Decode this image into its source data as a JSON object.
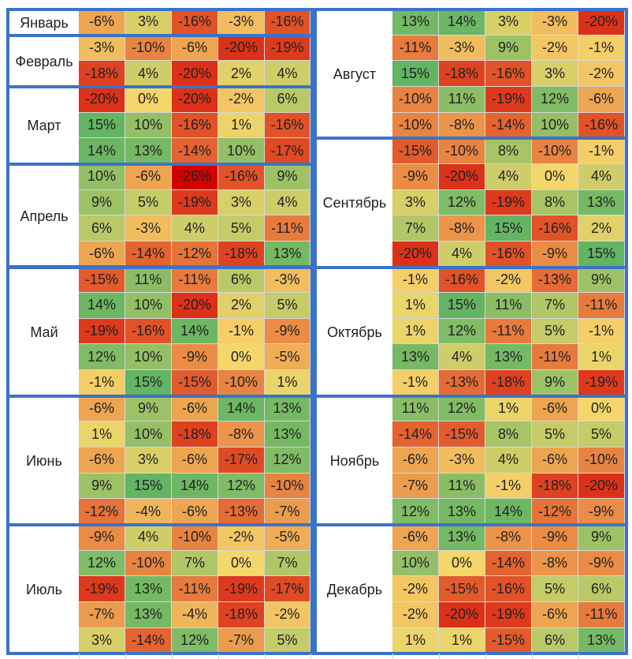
{
  "colors": {
    "frame": "#3b73c8",
    "scale_min": "#d40000",
    "scale_mid": "#f5d66b",
    "scale_max": "#63b463"
  },
  "left_months": [
    {
      "name": "Январь",
      "rows": [
        [
          "-6%",
          "3%",
          "-16%",
          "-3%",
          "-16%"
        ]
      ]
    },
    {
      "name": "Февраль",
      "rows": [
        [
          "-3%",
          "-10%",
          "-6%",
          "-20%",
          "-19%"
        ],
        [
          "-18%",
          "4%",
          "-20%",
          "2%",
          "4%"
        ]
      ]
    },
    {
      "name": "Март",
      "rows": [
        [
          "-20%",
          "0%",
          "-20%",
          "-2%",
          "6%"
        ],
        [
          "15%",
          "10%",
          "-16%",
          "1%",
          "-16%"
        ],
        [
          "14%",
          "13%",
          "-14%",
          "10%",
          "-17%"
        ]
      ]
    },
    {
      "name": "Апрель",
      "rows": [
        [
          "10%",
          "-6%",
          "-26%",
          "-16%",
          "9%"
        ],
        [
          "9%",
          "5%",
          "-19%",
          "3%",
          "4%"
        ],
        [
          "6%",
          "-3%",
          "4%",
          "5%",
          "-11%"
        ],
        [
          "-6%",
          "-14%",
          "-12%",
          "-18%",
          "13%"
        ]
      ]
    },
    {
      "name": "Май",
      "rows": [
        [
          "-15%",
          "11%",
          "-11%",
          "6%",
          "-3%"
        ],
        [
          "14%",
          "10%",
          "-20%",
          "2%",
          "5%"
        ],
        [
          "-19%",
          "-16%",
          "14%",
          "-1%",
          "-9%"
        ],
        [
          "12%",
          "10%",
          "-9%",
          "0%",
          "-5%"
        ],
        [
          "-1%",
          "15%",
          "-15%",
          "-10%",
          "1%"
        ]
      ]
    },
    {
      "name": "Июнь",
      "rows": [
        [
          "-6%",
          "9%",
          "-6%",
          "14%",
          "13%"
        ],
        [
          "1%",
          "10%",
          "-18%",
          "-8%",
          "13%"
        ],
        [
          "-6%",
          "3%",
          "-6%",
          "-17%",
          "12%"
        ],
        [
          "9%",
          "15%",
          "14%",
          "12%",
          "-10%"
        ],
        [
          "-12%",
          "-4%",
          "-6%",
          "-13%",
          "-7%"
        ]
      ]
    },
    {
      "name": "Июль",
      "rows": [
        [
          "-9%",
          "4%",
          "-10%",
          "-2%",
          "-5%"
        ],
        [
          "12%",
          "-10%",
          "7%",
          "0%",
          "7%"
        ],
        [
          "-19%",
          "13%",
          "-11%",
          "-19%",
          "-17%"
        ],
        [
          "-7%",
          "13%",
          "-4%",
          "-18%",
          "-2%"
        ],
        [
          "3%",
          "-14%",
          "12%",
          "-7%",
          "5%"
        ]
      ]
    }
  ],
  "right_months": [
    {
      "name": "Август",
      "rows": [
        [
          "13%",
          "14%",
          "3%",
          "-3%",
          "-20%"
        ],
        [
          "-11%",
          "-3%",
          "9%",
          "-2%",
          "-1%"
        ],
        [
          "15%",
          "-18%",
          "-16%",
          "3%",
          "-2%"
        ],
        [
          "-10%",
          "11%",
          "-19%",
          "12%",
          "-6%"
        ],
        [
          "-10%",
          "-8%",
          "-14%",
          "10%",
          "-16%"
        ]
      ]
    },
    {
      "name": "Сентябрь",
      "rows": [
        [
          "-15%",
          "-10%",
          "8%",
          "-10%",
          "-1%"
        ],
        [
          "-9%",
          "-20%",
          "4%",
          "0%",
          "4%"
        ],
        [
          "3%",
          "12%",
          "-19%",
          "8%",
          "13%"
        ],
        [
          "7%",
          "-8%",
          "15%",
          "-16%",
          "2%"
        ],
        [
          "-20%",
          "4%",
          "-16%",
          "-9%",
          "15%"
        ]
      ]
    },
    {
      "name": "Октябрь",
      "rows": [
        [
          "-1%",
          "-16%",
          "-2%",
          "-13%",
          "9%"
        ],
        [
          "1%",
          "15%",
          "11%",
          "7%",
          "-11%"
        ],
        [
          "1%",
          "12%",
          "-11%",
          "5%",
          "-1%"
        ],
        [
          "13%",
          "4%",
          "13%",
          "-11%",
          "1%"
        ],
        [
          "-1%",
          "-13%",
          "-18%",
          "9%",
          "-19%"
        ]
      ]
    },
    {
      "name": "Ноябрь",
      "rows": [
        [
          "11%",
          "12%",
          "1%",
          "-6%",
          "0%"
        ],
        [
          "-14%",
          "-15%",
          "8%",
          "5%",
          "5%"
        ],
        [
          "-6%",
          "-3%",
          "4%",
          "-6%",
          "-10%"
        ],
        [
          "-7%",
          "11%",
          "-1%",
          "-18%",
          "-20%"
        ],
        [
          "12%",
          "13%",
          "14%",
          "-12%",
          "-9%"
        ]
      ]
    },
    {
      "name": "Декабрь",
      "rows": [
        [
          "-6%",
          "13%",
          "-8%",
          "-9%",
          "9%"
        ],
        [
          "10%",
          "0%",
          "-14%",
          "-8%",
          "-9%"
        ],
        [
          "-2%",
          "-15%",
          "-16%",
          "5%",
          "6%"
        ],
        [
          "-2%",
          "-20%",
          "-19%",
          "-6%",
          "-11%"
        ],
        [
          "1%",
          "1%",
          "-15%",
          "6%",
          "13%"
        ]
      ]
    }
  ]
}
